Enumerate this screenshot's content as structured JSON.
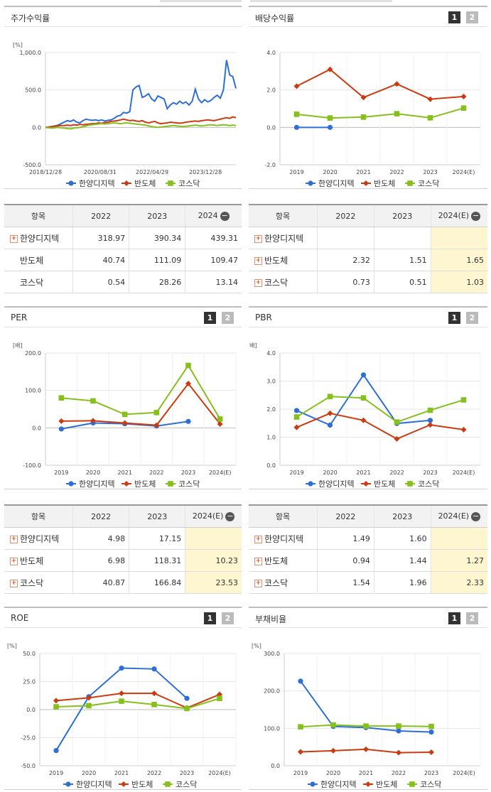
{
  "colors": {
    "company": "#2d6fd6",
    "sector": "#cc3a10",
    "kosdaq": "#86c01c"
  },
  "panels": {
    "return": {
      "title": "주가수익률",
      "unit": "[%]"
    },
    "dividend": {
      "title": "배당수익률",
      "page1": "1",
      "page2": "2"
    },
    "per": {
      "title": "PER",
      "unit": "[배]",
      "page1": "1",
      "page2": "2"
    },
    "pbr": {
      "title": "PBR",
      "unit": "[배]",
      "page1": "1",
      "page2": "2"
    },
    "roe": {
      "title": "ROE",
      "unit": "[%]",
      "page1": "1",
      "page2": "2"
    },
    "debt": {
      "title": "부채비율",
      "unit": "[%]",
      "page1": "1",
      "page2": "2"
    }
  },
  "legend": {
    "company": "한양디지텍",
    "sector": "반도체",
    "kosdaq": "코스닥"
  },
  "chart_data": [
    {
      "id": "return",
      "type": "line",
      "ylim": [
        -500,
        1000
      ],
      "yticks": [
        "1,000.0",
        "500.0",
        "0.0",
        "-500.0"
      ],
      "ytick_values": [
        1000,
        500,
        0,
        -500
      ],
      "xticks": [
        "2018/12/28",
        "2020/08/31",
        "2022/04/29",
        "2023/12/28"
      ],
      "series": [
        {
          "name": "한양디지텍",
          "key": "company",
          "values": [
            0,
            5,
            10,
            20,
            30,
            50,
            70,
            90,
            80,
            100,
            70,
            60,
            90,
            110,
            100,
            95,
            100,
            90,
            100,
            85,
            95,
            100,
            120,
            150,
            160,
            200,
            190,
            210,
            500,
            540,
            560,
            400,
            420,
            450,
            380,
            350,
            420,
            400,
            380,
            250,
            300,
            330,
            310,
            350,
            320,
            340,
            300,
            350,
            510,
            380,
            330,
            370,
            340,
            360,
            400,
            430,
            390,
            500,
            900,
            700,
            680,
            520
          ]
        },
        {
          "name": "반도체",
          "key": "sector",
          "values": [
            0,
            5,
            10,
            15,
            20,
            25,
            25,
            30,
            25,
            35,
            30,
            40,
            35,
            40,
            45,
            50,
            50,
            60,
            55,
            65,
            70,
            80,
            85,
            90,
            100,
            110,
            100,
            90,
            95,
            85,
            80,
            90,
            70,
            60,
            70,
            80,
            60,
            50,
            55,
            60,
            70,
            65,
            60,
            55,
            60,
            70,
            75,
            80,
            85,
            80,
            90,
            95,
            100,
            95,
            90,
            100,
            110,
            120,
            130,
            120,
            140,
            130
          ]
        },
        {
          "name": "코스닥",
          "key": "kosdaq",
          "values": [
            0,
            -5,
            -10,
            -5,
            0,
            -5,
            -10,
            -15,
            -20,
            -10,
            -5,
            0,
            10,
            20,
            30,
            35,
            40,
            45,
            50,
            45,
            50,
            55,
            60,
            55,
            50,
            55,
            60,
            55,
            50,
            45,
            40,
            35,
            30,
            20,
            10,
            5,
            0,
            5,
            10,
            15,
            20,
            25,
            20,
            15,
            10,
            15,
            20,
            25,
            30,
            25,
            20,
            25,
            30,
            35,
            30,
            25,
            30,
            35,
            30,
            25,
            30,
            25
          ]
        }
      ]
    },
    {
      "id": "dividend",
      "type": "line",
      "ylim": [
        -2,
        4
      ],
      "yticks": [
        "4.0",
        "2.0",
        "0.0",
        "-2.0"
      ],
      "ytick_values": [
        4,
        2,
        0,
        -2
      ],
      "categories": [
        "2019",
        "2020",
        "2021",
        "2022",
        "2023",
        "2024(E)"
      ],
      "series": [
        {
          "name": "한양디지텍",
          "key": "company",
          "values": [
            0.0,
            0.0,
            null,
            null,
            null,
            null
          ]
        },
        {
          "name": "반도체",
          "key": "sector",
          "values": [
            2.2,
            3.1,
            1.6,
            2.32,
            1.51,
            1.65
          ]
        },
        {
          "name": "코스닥",
          "key": "kosdaq",
          "values": [
            0.7,
            0.5,
            0.55,
            0.73,
            0.51,
            1.03
          ]
        }
      ]
    },
    {
      "id": "per",
      "type": "line",
      "ylim": [
        -100,
        200
      ],
      "yticks": [
        "200.0",
        "100.0",
        "0.0",
        "-100.0"
      ],
      "ytick_values": [
        200,
        100,
        0,
        -100
      ],
      "categories": [
        "2019",
        "2020",
        "2021",
        "2022",
        "2023",
        "2024(E)"
      ],
      "series": [
        {
          "name": "한양디지텍",
          "key": "company",
          "values": [
            -3,
            13,
            11,
            4.98,
            17.15,
            null
          ]
        },
        {
          "name": "반도체",
          "key": "sector",
          "values": [
            18,
            19,
            13,
            6.98,
            118.31,
            10.23
          ]
        },
        {
          "name": "코스닥",
          "key": "kosdaq",
          "values": [
            80,
            72,
            36,
            40.87,
            166.84,
            23.53
          ]
        }
      ]
    },
    {
      "id": "pbr",
      "type": "line",
      "ylim": [
        0,
        4
      ],
      "yticks": [
        "4.0",
        "3.0",
        "2.0",
        "1.0",
        "0.0"
      ],
      "ytick_values": [
        4,
        3,
        2,
        1,
        0
      ],
      "categories": [
        "2019",
        "2020",
        "2021",
        "2022",
        "2023",
        "2024(E)"
      ],
      "series": [
        {
          "name": "한양디지텍",
          "key": "company",
          "values": [
            1.95,
            1.43,
            3.22,
            1.49,
            1.6,
            null
          ]
        },
        {
          "name": "반도체",
          "key": "sector",
          "values": [
            1.35,
            1.85,
            1.6,
            0.94,
            1.44,
            1.27
          ]
        },
        {
          "name": "코스닥",
          "key": "kosdaq",
          "values": [
            1.72,
            2.45,
            2.4,
            1.54,
            1.96,
            2.33
          ]
        }
      ]
    },
    {
      "id": "roe",
      "type": "line",
      "ylim": [
        -50,
        50
      ],
      "yticks": [
        "50.0",
        "25.0",
        "0.0",
        "-25.0",
        "-50.0"
      ],
      "ytick_values": [
        50,
        25,
        0,
        -25,
        -50
      ],
      "categories": [
        "2019",
        "2020",
        "2021",
        "2022",
        "2023",
        "2024(E)"
      ],
      "series": [
        {
          "name": "한양디지텍",
          "key": "company",
          "values": [
            -36.5,
            11.5,
            37.0,
            36.2,
            10.0,
            null
          ]
        },
        {
          "name": "반도체",
          "key": "sector",
          "values": [
            8.0,
            10.5,
            14.5,
            14.5,
            1.5,
            13.5
          ]
        },
        {
          "name": "코스닥",
          "key": "kosdaq",
          "values": [
            2.5,
            3.5,
            7.5,
            4.5,
            1.0,
            10.0
          ]
        }
      ]
    },
    {
      "id": "debt",
      "type": "line",
      "ylim": [
        0,
        300
      ],
      "yticks": [
        "300.0",
        "200.0",
        "100.0",
        "0.0"
      ],
      "ytick_values": [
        300,
        200,
        100,
        0
      ],
      "categories": [
        "2019",
        "2020",
        "2021",
        "2022",
        "2023",
        "2024(E)"
      ],
      "series": [
        {
          "name": "한양디지텍",
          "key": "company",
          "values": [
            226,
            105,
            102,
            93,
            90,
            null
          ]
        },
        {
          "name": "반도체",
          "key": "sector",
          "values": [
            37,
            40,
            44,
            35,
            36,
            null
          ]
        },
        {
          "name": "코스닥",
          "key": "kosdaq",
          "values": [
            104,
            109,
            106,
            106,
            105,
            null
          ]
        }
      ]
    }
  ],
  "tables": {
    "return": {
      "head": [
        "항목",
        "2022",
        "2023",
        "2024"
      ],
      "minus": "−",
      "rows": [
        {
          "name": "한양디지텍",
          "plus": true,
          "v": [
            "318.97",
            "390.34",
            "439.31"
          ]
        },
        {
          "name": "반도체",
          "plus": false,
          "v": [
            "40.74",
            "111.09",
            "109.47"
          ]
        },
        {
          "name": "코스닥",
          "plus": false,
          "v": [
            "0.54",
            "28.26",
            "13.14"
          ]
        }
      ]
    },
    "dividend": {
      "head": [
        "항목",
        "2022",
        "2023",
        "2024(E)"
      ],
      "minus": "−",
      "rows": [
        {
          "name": "한양디지텍",
          "plus": true,
          "v": [
            "",
            "",
            ""
          ]
        },
        {
          "name": "반도체",
          "plus": true,
          "v": [
            "2.32",
            "1.51",
            "1.65"
          ]
        },
        {
          "name": "코스닥",
          "plus": true,
          "v": [
            "0.73",
            "0.51",
            "1.03"
          ]
        }
      ]
    },
    "per": {
      "head": [
        "항목",
        "2022",
        "2023",
        "2024(E)"
      ],
      "minus": "−",
      "rows": [
        {
          "name": "한양디지텍",
          "plus": true,
          "v": [
            "4.98",
            "17.15",
            ""
          ]
        },
        {
          "name": "반도체",
          "plus": true,
          "v": [
            "6.98",
            "118.31",
            "10.23"
          ]
        },
        {
          "name": "코스닥",
          "plus": true,
          "v": [
            "40.87",
            "166.84",
            "23.53"
          ]
        }
      ]
    },
    "pbr": {
      "head": [
        "항목",
        "2022",
        "2023",
        "2024(E)"
      ],
      "minus": "−",
      "rows": [
        {
          "name": "한양디지텍",
          "plus": true,
          "v": [
            "1.49",
            "1.60",
            ""
          ]
        },
        {
          "name": "반도체",
          "plus": true,
          "v": [
            "0.94",
            "1.44",
            "1.27"
          ]
        },
        {
          "name": "코스닥",
          "plus": true,
          "v": [
            "1.54",
            "1.96",
            "2.33"
          ]
        }
      ]
    }
  }
}
